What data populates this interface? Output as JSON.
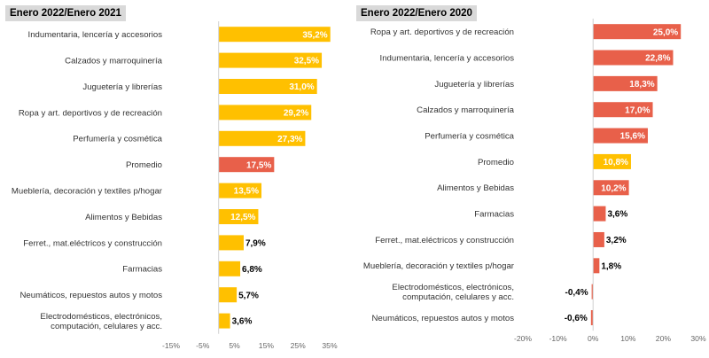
{
  "chart_data": [
    {
      "type": "bar",
      "orientation": "horizontal",
      "title": "Enero 2022/Enero 2021",
      "categories": [
        "Indumentaria, lencería y accesorios",
        "Calzados y marroquinería",
        "Juguetería y librerías",
        "Ropa y art. deportivos y de recreación",
        "Perfumería y cosmética",
        "Promedio",
        "Mueblería, decoración y textiles p/hogar",
        "Alimentos y Bebidas",
        "Ferret., mat.eléctricos y construcción",
        "Farmacias",
        "Neumáticos, repuestos autos y motos",
        "Electrodomésticos, electrónicos, computación, celulares y acc."
      ],
      "values": [
        35.2,
        32.5,
        31.0,
        29.2,
        27.3,
        17.5,
        13.5,
        12.5,
        7.9,
        6.8,
        5.7,
        3.6
      ],
      "value_labels": [
        "35,2%",
        "32,5%",
        "31,0%",
        "29,2%",
        "27,3%",
        "17,5%",
        "13,5%",
        "12,5%",
        "7,9%",
        "6,8%",
        "5,7%",
        "3,6%"
      ],
      "highlight_category": "Promedio",
      "xlim": [
        -15,
        35
      ],
      "x_ticks": [
        -15,
        -5,
        5,
        15,
        25,
        35
      ],
      "x_tick_labels": [
        "-15%",
        "-5%",
        "5%",
        "15%",
        "25%",
        "35%"
      ],
      "colors": {
        "bar": "#FFC000",
        "highlight": "#E8604A"
      },
      "grid": false
    },
    {
      "type": "bar",
      "orientation": "horizontal",
      "title": "Enero 2022/Enero 2020",
      "categories": [
        "Ropa y art. deportivos y de recreación",
        "Indumentaria, lencería y accesorios",
        "Juguetería y librerías",
        "Calzados y marroquinería",
        "Perfumería y cosmética",
        "Promedio",
        "Alimentos y Bebidas",
        "Farmacias",
        "Ferret., mat.eléctricos y construcción",
        "Mueblería, decoración y textiles p/hogar",
        "Electrodomésticos, electrónicos, computación, celulares y acc.",
        "Neumáticos, repuestos autos y motos"
      ],
      "values": [
        25.0,
        22.8,
        18.3,
        17.0,
        15.6,
        10.8,
        10.2,
        3.6,
        3.2,
        1.8,
        -0.4,
        -0.6
      ],
      "value_labels": [
        "25,0%",
        "22,8%",
        "18,3%",
        "17,0%",
        "15,6%",
        "10,8%",
        "10,2%",
        "3,6%",
        "3,2%",
        "1,8%",
        "-0,4%",
        "-0,6%"
      ],
      "highlight_category": "Promedio",
      "xlim": [
        -20,
        30
      ],
      "x_ticks": [
        -20,
        -10,
        0,
        10,
        20,
        30
      ],
      "x_tick_labels": [
        "-20%",
        "-10%",
        "0%",
        "10%",
        "20%",
        "30%"
      ],
      "colors": {
        "bar": "#E8604A",
        "highlight": "#FFC000"
      },
      "grid": false
    }
  ]
}
